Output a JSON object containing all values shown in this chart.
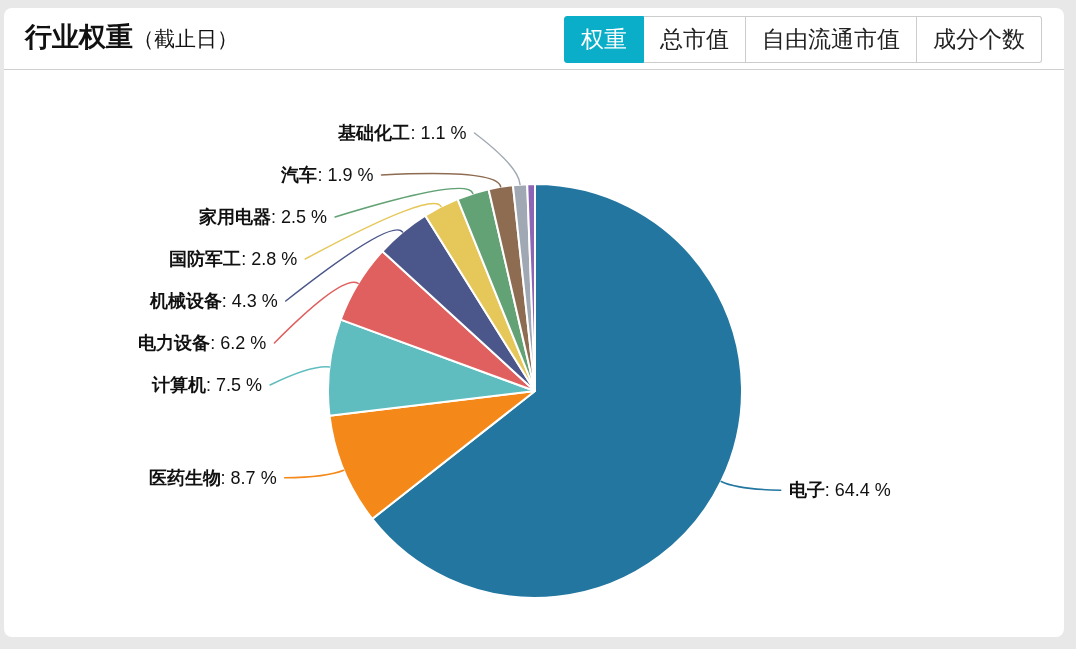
{
  "chart_data": {
    "type": "pie",
    "title": "行业权重",
    "subtitle": "（截止日）",
    "categories": [
      "电子",
      "医药生物",
      "计算机",
      "电力设备",
      "机械设备",
      "国防军工",
      "家用电器",
      "汽车",
      "基础化工",
      null
    ],
    "values": [
      64.4,
      8.7,
      7.5,
      6.2,
      4.3,
      2.8,
      2.5,
      1.9,
      1.1,
      0.6
    ],
    "colors": [
      "#2276a0",
      "#f4891a",
      "#5fbdbf",
      "#e05f5f",
      "#4b568a",
      "#e6c75a",
      "#62a275",
      "#8e6c52",
      "#a0a9b3",
      "#8d65b5"
    ],
    "value_labels": [
      ": 64.4 %",
      ": 8.7 %",
      ": 7.5 %",
      ": 6.2 %",
      ": 4.3 %",
      ": 2.8 %",
      ": 2.5 %",
      ": 1.9 %",
      ": 1.1 %",
      null
    ],
    "annotations": [
      "权重",
      "总市值",
      "自由流通市值",
      "成分个数"
    ]
  }
}
